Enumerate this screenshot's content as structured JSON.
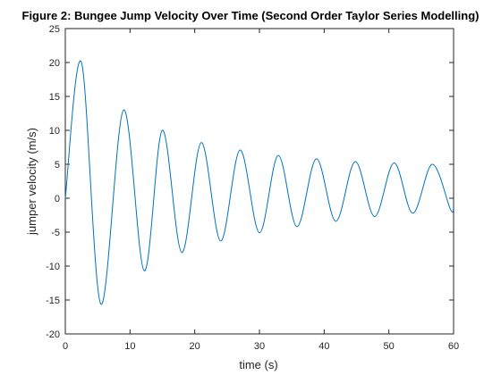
{
  "chart_data": {
    "type": "line",
    "title": "Figure 2: Bungee Jump Velocity Over Time (Second Order Taylor Series Modelling)",
    "xlabel": "time (s)",
    "ylabel": "jumper velocity (m/s)",
    "xlim": [
      0,
      60
    ],
    "ylim": [
      -20,
      25
    ],
    "xticks": [
      0,
      10,
      20,
      30,
      40,
      50,
      60
    ],
    "yticks": [
      -20,
      -15,
      -10,
      -5,
      0,
      5,
      10,
      15,
      20,
      25
    ],
    "grid": false,
    "line_color": "#0072bd",
    "series": [
      {
        "x": [
          0,
          2.5,
          5.5,
          9.0,
          12.2,
          15.0,
          18.0,
          21.0,
          24.0,
          27.0,
          30.0,
          32.9,
          35.8,
          38.8,
          41.8,
          44.8,
          47.8,
          50.8,
          53.7,
          56.7,
          59.5,
          60
        ],
        "values": [
          0,
          20.0,
          -15.6,
          13.0,
          -10.7,
          10.0,
          -8.0,
          8.2,
          -6.3,
          7.1,
          -5.1,
          6.3,
          -4.2,
          5.8,
          -3.4,
          5.4,
          -2.7,
          5.2,
          -2.2,
          5.0,
          -1.6,
          -1.5
        ]
      }
    ]
  }
}
